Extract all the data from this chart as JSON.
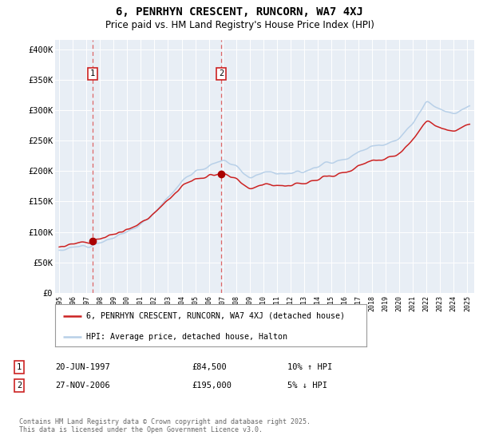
{
  "title": "6, PENRHYN CRESCENT, RUNCORN, WA7 4XJ",
  "subtitle": "Price paid vs. HM Land Registry's House Price Index (HPI)",
  "ylabel_ticks": [
    "£0",
    "£50K",
    "£100K",
    "£150K",
    "£200K",
    "£250K",
    "£300K",
    "£350K",
    "£400K"
  ],
  "ytick_values": [
    0,
    50000,
    100000,
    150000,
    200000,
    250000,
    300000,
    350000,
    400000
  ],
  "ylim": [
    0,
    415000
  ],
  "sale1_x": 1997.46,
  "sale1_price": 84500,
  "sale2_x": 2006.9,
  "sale2_price": 195000,
  "hpi_color": "#b8d0e8",
  "price_color": "#cc2222",
  "vline_color": "#dd6666",
  "dot_color": "#aa0000",
  "plot_bg_color": "#e8eef5",
  "legend_entry1": "6, PENRHYN CRESCENT, RUNCORN, WA7 4XJ (detached house)",
  "legend_entry2": "HPI: Average price, detached house, Halton",
  "footer": "Contains HM Land Registry data © Crown copyright and database right 2025.\nThis data is licensed under the Open Government Licence v3.0.",
  "title_fontsize": 10,
  "subtitle_fontsize": 8.5,
  "axis_fontsize": 7.5,
  "legend_fontsize": 8
}
